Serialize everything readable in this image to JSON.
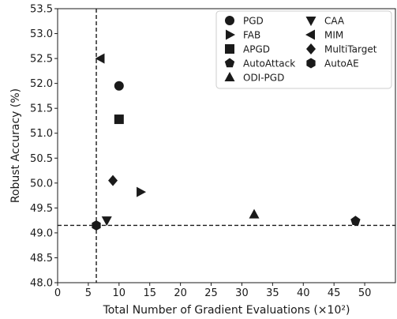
{
  "chart_data": {
    "type": "scatter",
    "title": "",
    "xlabel": "Total Number of Gradient Evaluations (×10²)",
    "ylabel": "Robust Accuracy (%)",
    "xlim": [
      0,
      55
    ],
    "ylim": [
      48.0,
      53.5
    ],
    "xticks": [
      0,
      5,
      10,
      15,
      20,
      25,
      30,
      35,
      40,
      45,
      50
    ],
    "yticks": [
      48.0,
      48.5,
      49.0,
      49.5,
      50.0,
      50.5,
      51.0,
      51.5,
      52.0,
      52.5,
      53.0,
      53.5
    ],
    "grid": false,
    "legend_position": "top-right",
    "series": [
      {
        "name": "PGD",
        "marker": "circle",
        "x": [
          10.0
        ],
        "y": [
          51.95
        ]
      },
      {
        "name": "FAB",
        "marker": "triangle-right",
        "x": [
          13.5
        ],
        "y": [
          49.82
        ]
      },
      {
        "name": "APGD",
        "marker": "square",
        "x": [
          10.0
        ],
        "y": [
          51.28
        ]
      },
      {
        "name": "AutoAttack",
        "marker": "pentagon",
        "x": [
          48.5
        ],
        "y": [
          49.24
        ]
      },
      {
        "name": "ODI-PGD",
        "marker": "triangle-up",
        "x": [
          32.0
        ],
        "y": [
          49.37
        ]
      },
      {
        "name": "CAA",
        "marker": "triangle-down",
        "x": [
          8.0
        ],
        "y": [
          49.25
        ]
      },
      {
        "name": "MIM",
        "marker": "triangle-left",
        "x": [
          7.0
        ],
        "y": [
          52.5
        ]
      },
      {
        "name": "MultiTarget",
        "marker": "diamond",
        "x": [
          9.0
        ],
        "y": [
          50.05
        ]
      },
      {
        "name": "AutoAE",
        "marker": "hexagon",
        "x": [
          6.3
        ],
        "y": [
          49.15
        ]
      }
    ],
    "reference_lines": {
      "vertical_x": 6.3,
      "horizontal_y": 49.15
    },
    "colors": {
      "marker": "#1a1a1a",
      "axis": "#1a1a1a",
      "background": "#ffffff"
    }
  }
}
